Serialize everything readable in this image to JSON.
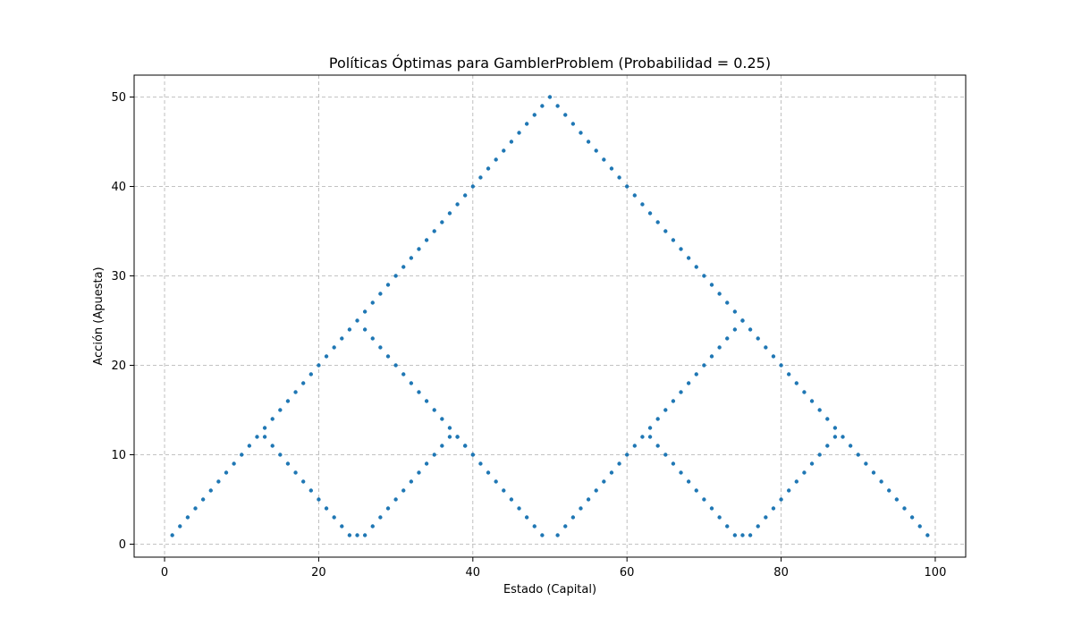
{
  "chart_data": {
    "type": "scatter",
    "title": "Políticas Óptimas para GamblerProblem (Probabilidad = 0.25)",
    "xlabel": "Estado (Capital)",
    "ylabel": "Acción (Apuesta)",
    "xlim": [
      -3.95,
      103.95
    ],
    "ylim": [
      -1.45,
      52.45
    ],
    "xticks": [
      0,
      20,
      40,
      60,
      80,
      100
    ],
    "yticks": [
      0,
      10,
      20,
      30,
      40,
      50
    ],
    "xtick_labels": [
      "0",
      "20",
      "40",
      "60",
      "80",
      "100"
    ],
    "ytick_labels": [
      "0",
      "10",
      "20",
      "30",
      "40",
      "50"
    ],
    "grid": true,
    "series": [
      {
        "color": "#1f77b4",
        "points": [
          [
            1,
            1
          ],
          [
            2,
            2
          ],
          [
            3,
            3
          ],
          [
            4,
            4
          ],
          [
            5,
            5
          ],
          [
            6,
            6
          ],
          [
            7,
            7
          ],
          [
            8,
            8
          ],
          [
            9,
            9
          ],
          [
            10,
            10
          ],
          [
            11,
            11
          ],
          [
            12,
            12
          ],
          [
            13,
            12
          ],
          [
            14,
            11
          ],
          [
            15,
            10
          ],
          [
            16,
            9
          ],
          [
            17,
            8
          ],
          [
            18,
            7
          ],
          [
            19,
            6
          ],
          [
            20,
            5
          ],
          [
            21,
            4
          ],
          [
            22,
            3
          ],
          [
            23,
            2
          ],
          [
            24,
            1
          ],
          [
            25,
            1
          ],
          [
            26,
            1
          ],
          [
            27,
            2
          ],
          [
            28,
            3
          ],
          [
            29,
            4
          ],
          [
            30,
            5
          ],
          [
            31,
            6
          ],
          [
            32,
            7
          ],
          [
            33,
            8
          ],
          [
            34,
            9
          ],
          [
            35,
            10
          ],
          [
            36,
            11
          ],
          [
            37,
            12
          ],
          [
            38,
            12
          ],
          [
            39,
            11
          ],
          [
            40,
            10
          ],
          [
            41,
            9
          ],
          [
            42,
            8
          ],
          [
            43,
            7
          ],
          [
            44,
            6
          ],
          [
            45,
            5
          ],
          [
            46,
            4
          ],
          [
            47,
            3
          ],
          [
            48,
            2
          ],
          [
            49,
            1
          ],
          [
            50,
            50
          ],
          [
            51,
            1
          ],
          [
            52,
            2
          ],
          [
            53,
            3
          ],
          [
            54,
            4
          ],
          [
            55,
            5
          ],
          [
            56,
            6
          ],
          [
            57,
            7
          ],
          [
            58,
            8
          ],
          [
            59,
            9
          ],
          [
            60,
            10
          ],
          [
            61,
            11
          ],
          [
            62,
            12
          ],
          [
            63,
            12
          ],
          [
            64,
            11
          ],
          [
            65,
            10
          ],
          [
            66,
            9
          ],
          [
            67,
            8
          ],
          [
            68,
            7
          ],
          [
            69,
            6
          ],
          [
            70,
            5
          ],
          [
            71,
            4
          ],
          [
            72,
            3
          ],
          [
            73,
            2
          ],
          [
            74,
            1
          ],
          [
            75,
            1
          ],
          [
            76,
            1
          ],
          [
            77,
            2
          ],
          [
            78,
            3
          ],
          [
            79,
            4
          ],
          [
            80,
            5
          ],
          [
            81,
            6
          ],
          [
            82,
            7
          ],
          [
            83,
            8
          ],
          [
            84,
            9
          ],
          [
            85,
            10
          ],
          [
            86,
            11
          ],
          [
            87,
            12
          ],
          [
            88,
            12
          ],
          [
            89,
            11
          ],
          [
            90,
            10
          ],
          [
            91,
            9
          ],
          [
            92,
            8
          ],
          [
            93,
            7
          ],
          [
            94,
            6
          ],
          [
            95,
            5
          ],
          [
            96,
            4
          ],
          [
            97,
            3
          ],
          [
            98,
            2
          ],
          [
            99,
            1
          ],
          [
            13,
            13
          ],
          [
            14,
            14
          ],
          [
            15,
            15
          ],
          [
            16,
            16
          ],
          [
            17,
            17
          ],
          [
            18,
            18
          ],
          [
            19,
            19
          ],
          [
            20,
            20
          ],
          [
            21,
            21
          ],
          [
            22,
            22
          ],
          [
            23,
            23
          ],
          [
            24,
            24
          ],
          [
            25,
            25
          ],
          [
            26,
            24
          ],
          [
            27,
            23
          ],
          [
            28,
            22
          ],
          [
            29,
            21
          ],
          [
            30,
            20
          ],
          [
            31,
            19
          ],
          [
            32,
            18
          ],
          [
            33,
            17
          ],
          [
            34,
            16
          ],
          [
            35,
            15
          ],
          [
            36,
            14
          ],
          [
            37,
            13
          ],
          [
            38,
            12
          ],
          [
            39,
            11
          ],
          [
            40,
            10
          ],
          [
            26,
            26
          ],
          [
            27,
            27
          ],
          [
            28,
            28
          ],
          [
            29,
            29
          ],
          [
            30,
            30
          ],
          [
            31,
            31
          ],
          [
            32,
            32
          ],
          [
            33,
            33
          ],
          [
            34,
            34
          ],
          [
            35,
            35
          ],
          [
            36,
            36
          ],
          [
            37,
            37
          ],
          [
            38,
            38
          ],
          [
            39,
            39
          ],
          [
            40,
            40
          ],
          [
            41,
            41
          ],
          [
            42,
            42
          ],
          [
            43,
            43
          ],
          [
            44,
            44
          ],
          [
            45,
            45
          ],
          [
            46,
            46
          ],
          [
            47,
            47
          ],
          [
            48,
            48
          ],
          [
            49,
            49
          ],
          [
            51,
            49
          ],
          [
            52,
            48
          ],
          [
            53,
            47
          ],
          [
            54,
            46
          ],
          [
            55,
            45
          ],
          [
            56,
            44
          ],
          [
            57,
            43
          ],
          [
            58,
            42
          ],
          [
            59,
            41
          ],
          [
            60,
            40
          ],
          [
            61,
            39
          ],
          [
            62,
            38
          ],
          [
            63,
            37
          ],
          [
            64,
            36
          ],
          [
            65,
            35
          ],
          [
            66,
            34
          ],
          [
            67,
            33
          ],
          [
            68,
            32
          ],
          [
            69,
            31
          ],
          [
            70,
            30
          ],
          [
            71,
            29
          ],
          [
            72,
            28
          ],
          [
            73,
            27
          ],
          [
            74,
            26
          ],
          [
            75,
            25
          ],
          [
            76,
            24
          ],
          [
            77,
            23
          ],
          [
            78,
            22
          ],
          [
            79,
            21
          ],
          [
            80,
            20
          ],
          [
            81,
            19
          ],
          [
            82,
            18
          ],
          [
            83,
            17
          ],
          [
            84,
            16
          ],
          [
            85,
            15
          ],
          [
            86,
            14
          ],
          [
            87,
            13
          ],
          [
            63,
            13
          ],
          [
            64,
            14
          ],
          [
            65,
            15
          ],
          [
            66,
            16
          ],
          [
            67,
            17
          ],
          [
            68,
            18
          ],
          [
            69,
            19
          ],
          [
            70,
            20
          ],
          [
            71,
            21
          ],
          [
            72,
            22
          ],
          [
            73,
            23
          ],
          [
            74,
            24
          ],
          [
            75,
            25
          ]
        ]
      }
    ]
  }
}
